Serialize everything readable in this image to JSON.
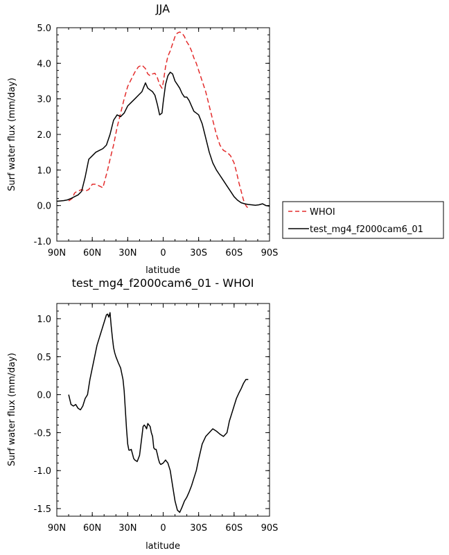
{
  "chart_data": [
    {
      "type": "line",
      "title": "JJA",
      "xlabel": "latitude",
      "ylabel": "Surf water flux (mm/day)",
      "x_ticks": [
        "90N",
        "60N",
        "30N",
        "0",
        "30S",
        "60S",
        "90S"
      ],
      "x_tick_values": [
        90,
        60,
        30,
        0,
        -30,
        -60,
        -90
      ],
      "xlim": [
        90,
        -90
      ],
      "y_ticks": [
        "-1.0",
        "0.0",
        "1.0",
        "2.0",
        "3.0",
        "4.0",
        "5.0"
      ],
      "y_tick_values": [
        -1,
        0,
        1,
        2,
        3,
        4,
        5
      ],
      "ylim": [
        -1,
        5
      ],
      "legend": {
        "placement": "right-outside"
      },
      "series": [
        {
          "name": "WHOI",
          "color": "#e32b2b",
          "style": "dashed",
          "x": [
            80,
            77,
            75,
            73,
            71,
            69,
            67,
            65,
            63,
            60,
            57,
            54,
            51,
            49,
            47,
            45,
            42,
            39,
            36,
            33,
            30,
            27,
            24,
            21,
            18,
            15,
            13,
            11,
            9,
            7,
            5,
            3,
            1,
            0,
            -2,
            -4,
            -6,
            -8,
            -10,
            -12,
            -14,
            -16,
            -18,
            -20,
            -22,
            -24,
            -26,
            -28,
            -30,
            -33,
            -36,
            -39,
            -42,
            -45,
            -48,
            -51,
            -54,
            -57,
            -60,
            -62,
            -64,
            -66,
            -68,
            -70,
            -72
          ],
          "y": [
            0.13,
            0.2,
            0.35,
            0.4,
            0.42,
            0.45,
            0.42,
            0.42,
            0.45,
            0.6,
            0.6,
            0.55,
            0.5,
            0.75,
            1.0,
            1.3,
            1.7,
            2.2,
            2.6,
            3.0,
            3.35,
            3.55,
            3.75,
            3.9,
            3.95,
            3.85,
            3.7,
            3.65,
            3.7,
            3.72,
            3.6,
            3.4,
            3.3,
            3.45,
            3.9,
            4.2,
            4.35,
            4.55,
            4.75,
            4.85,
            4.88,
            4.85,
            4.75,
            4.6,
            4.5,
            4.35,
            4.15,
            4.0,
            3.8,
            3.5,
            3.2,
            2.8,
            2.4,
            2.0,
            1.7,
            1.55,
            1.5,
            1.4,
            1.2,
            0.95,
            0.65,
            0.4,
            0.15,
            0.0,
            -0.08
          ]
        },
        {
          "name": "test_mg4_f2000cam6_01",
          "color": "#000000",
          "style": "solid",
          "x": [
            90,
            87,
            84,
            81,
            78,
            75,
            72,
            69,
            66,
            63,
            60,
            57,
            54,
            51,
            48,
            45,
            42,
            39,
            36,
            33,
            30,
            27,
            24,
            21,
            18,
            15,
            13,
            11,
            9,
            7,
            5,
            3,
            1,
            0,
            -2,
            -4,
            -6,
            -8,
            -10,
            -12,
            -14,
            -16,
            -18,
            -20,
            -22,
            -24,
            -26,
            -28,
            -30,
            -33,
            -36,
            -39,
            -42,
            -45,
            -48,
            -51,
            -54,
            -57,
            -60,
            -63,
            -66,
            -69,
            -72,
            -75,
            -78,
            -81,
            -84,
            -87,
            -90
          ],
          "y": [
            0.12,
            0.13,
            0.14,
            0.16,
            0.2,
            0.25,
            0.3,
            0.4,
            0.8,
            1.3,
            1.4,
            1.5,
            1.55,
            1.6,
            1.7,
            2.0,
            2.4,
            2.55,
            2.5,
            2.6,
            2.8,
            2.9,
            3.0,
            3.1,
            3.2,
            3.45,
            3.3,
            3.25,
            3.2,
            3.1,
            2.85,
            2.55,
            2.6,
            2.9,
            3.4,
            3.65,
            3.75,
            3.7,
            3.5,
            3.4,
            3.3,
            3.15,
            3.05,
            3.05,
            2.95,
            2.8,
            2.65,
            2.6,
            2.55,
            2.3,
            1.9,
            1.5,
            1.2,
            1.0,
            0.85,
            0.7,
            0.55,
            0.4,
            0.25,
            0.15,
            0.08,
            0.05,
            0.03,
            0.02,
            0.01,
            0.02,
            0.05,
            0.0,
            -0.02
          ]
        }
      ]
    },
    {
      "type": "line",
      "title": "test_mg4_f2000cam6_01 - WHOI",
      "xlabel": "latitude",
      "ylabel": "Surf water flux (mm/day)",
      "x_ticks": [
        "90N",
        "60N",
        "30N",
        "0",
        "30S",
        "60S",
        "90S"
      ],
      "x_tick_values": [
        90,
        60,
        30,
        0,
        -30,
        -60,
        -90
      ],
      "xlim": [
        90,
        -90
      ],
      "y_ticks": [
        "-1.5",
        "-1.0",
        "-0.5",
        "0.0",
        "0.5",
        "1.0"
      ],
      "y_tick_values": [
        -1.5,
        -1,
        -0.5,
        0,
        0.5,
        1
      ],
      "ylim": [
        -1.6,
        1.2
      ],
      "series": [
        {
          "name": "",
          "color": "#000000",
          "style": "solid",
          "x": [
            80,
            78,
            76,
            74,
            72,
            70,
            68,
            66,
            64,
            62,
            60,
            58,
            56,
            54,
            53,
            52,
            51,
            50,
            49,
            48,
            47,
            46,
            45,
            44,
            43,
            42,
            41,
            40,
            38,
            36,
            34,
            33,
            32,
            31,
            30,
            29,
            28,
            27,
            26,
            25,
            24,
            22,
            20,
            18,
            17,
            16,
            15,
            14,
            13,
            12,
            11,
            10,
            9,
            8,
            7,
            6,
            5,
            4,
            3,
            2,
            1,
            0,
            -2,
            -4,
            -6,
            -8,
            -10,
            -12,
            -14,
            -16,
            -18,
            -20,
            -22,
            -24,
            -26,
            -28,
            -30,
            -33,
            -36,
            -39,
            -42,
            -45,
            -48,
            -51,
            -54,
            -56,
            -58,
            -60,
            -62,
            -64,
            -66,
            -68,
            -70,
            -72
          ],
          "y": [
            0.0,
            -0.13,
            -0.15,
            -0.13,
            -0.18,
            -0.2,
            -0.15,
            -0.05,
            0.0,
            0.2,
            0.35,
            0.5,
            0.65,
            0.75,
            0.8,
            0.85,
            0.9,
            0.95,
            1.0,
            1.05,
            1.06,
            1.02,
            1.08,
            0.9,
            0.75,
            0.62,
            0.55,
            0.5,
            0.42,
            0.35,
            0.2,
            0.05,
            -0.2,
            -0.45,
            -0.65,
            -0.73,
            -0.73,
            -0.72,
            -0.78,
            -0.84,
            -0.86,
            -0.88,
            -0.8,
            -0.55,
            -0.42,
            -0.4,
            -0.42,
            -0.45,
            -0.38,
            -0.4,
            -0.42,
            -0.5,
            -0.55,
            -0.7,
            -0.72,
            -0.72,
            -0.78,
            -0.85,
            -0.9,
            -0.92,
            -0.91,
            -0.9,
            -0.86,
            -0.9,
            -1.0,
            -1.2,
            -1.4,
            -1.52,
            -1.55,
            -1.48,
            -1.4,
            -1.35,
            -1.28,
            -1.2,
            -1.1,
            -1.0,
            -0.85,
            -0.65,
            -0.55,
            -0.5,
            -0.45,
            -0.48,
            -0.52,
            -0.55,
            -0.5,
            -0.35,
            -0.25,
            -0.15,
            -0.05,
            0.02,
            0.08,
            0.15,
            0.2,
            0.2
          ]
        }
      ]
    }
  ]
}
